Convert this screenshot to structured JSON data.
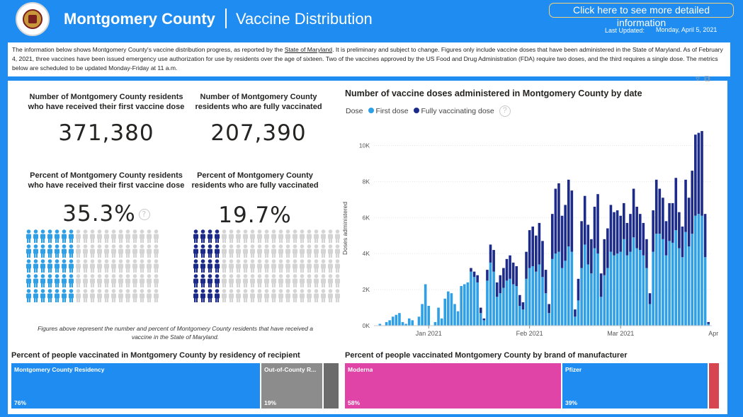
{
  "header": {
    "title": "Montgomery County",
    "subtitle": "Vaccine Distribution",
    "detail_button": "Click here to see more detailed information",
    "updated_label": "Last Updated:",
    "updated_value": "Monday, April 5, 2021"
  },
  "info": {
    "text_before_link": "The information below shows Montgomery County's vaccine distribution progress, as reported by the ",
    "link_text": "State of Maryland",
    "text_after_link": ". It is preliminary and subject to change. Figures only include vaccine doses that have been administered in the State of Maryland. As of  February 4, 2021, three vaccines have been issued emergency use authorization for use by residents over the age of sixteen. Two of the vaccines approved by the US Food and Drug Administration (FDA) require two doses, and the third requires a single dose. The metrics below are scheduled to be updated Monday-Friday at 11 a.m."
  },
  "kpis": {
    "first_dose_label": "Number of Montgomery County residents who have received their first vaccine dose",
    "first_dose_value": "371,380",
    "full_label": "Number of Montgomery County residents who are fully vaccinated",
    "full_value": "207,390",
    "first_pct_label": "Percent of Montgomery County residents who have received their first vaccine dose",
    "first_pct_value": "35.3%",
    "first_pct_fraction": 0.353,
    "full_pct_label": "Percent of Montgomery County residents who are fully vaccinated",
    "full_pct_value": "19.7%",
    "full_pct_fraction": 0.197,
    "footnote": "Figures above represent the number and percent of Montgomery County residents that have received a vaccine in the State of Maryland."
  },
  "colors": {
    "header_blue": "#1e8cf0",
    "first_dose": "#2f9fe6",
    "full_dose": "#1c2a8a",
    "person_empty": "#d4d4d4",
    "moderna": "#e044a7",
    "pfizer": "#1e8cf0",
    "janssen": "#d64550",
    "residency": "#1e8cf0",
    "out_of_county": "#8c8c8c",
    "other": "#6b6b6b"
  },
  "chart_data": {
    "type": "bar",
    "title": "Number of vaccine doses administered in Montgomery County by date",
    "legend_title": "Dose",
    "ylabel": "Doses administered",
    "ylim": [
      0,
      11000
    ],
    "yticks": [
      0,
      2000,
      4000,
      6000,
      8000,
      10000
    ],
    "ytick_labels": [
      "0K",
      "2K",
      "4K",
      "6K",
      "8K",
      "10K"
    ],
    "xticks": [
      "Jan 2021",
      "Feb 2021",
      "Mar 2021",
      "Apr 2021"
    ],
    "xtick_dates": [
      "2021-01-01",
      "2021-02-01",
      "2021-03-01",
      "2021-04-01"
    ],
    "start_date": "2020-12-16",
    "series": [
      {
        "name": "First dose",
        "values": [
          0,
          100,
          0,
          200,
          300,
          500,
          600,
          700,
          200,
          100,
          400,
          300,
          0,
          500,
          1200,
          2300,
          1100,
          0,
          200,
          1000,
          400,
          1500,
          1900,
          1800,
          1200,
          800,
          2200,
          2300,
          2400,
          3000,
          2700,
          2400,
          700,
          300,
          2500,
          3500,
          3000,
          1600,
          1800,
          2100,
          2500,
          2600,
          2300,
          2200,
          1100,
          900,
          2600,
          3200,
          3300,
          3000,
          3400,
          2700,
          1800,
          700,
          3700,
          4000,
          4100,
          3200,
          3600,
          4400,
          4100,
          500,
          1400,
          3200,
          4500,
          3400,
          2900,
          4300,
          4000,
          1600,
          2800,
          3200,
          4100,
          3900,
          4000,
          4100,
          4800,
          3900,
          4100,
          4900,
          4300,
          4200,
          3900,
          3200,
          1200,
          4100,
          5100,
          5100,
          4800,
          3900,
          4700,
          4600,
          5300,
          4300,
          3800,
          5200,
          4400,
          5100,
          6100,
          6200,
          6100,
          3800,
          100
        ]
      },
      {
        "name": "Fully vaccinating dose",
        "values": [
          0,
          0,
          0,
          0,
          0,
          0,
          0,
          0,
          0,
          0,
          0,
          0,
          0,
          0,
          0,
          0,
          0,
          0,
          0,
          0,
          0,
          0,
          0,
          0,
          0,
          0,
          0,
          0,
          0,
          200,
          300,
          400,
          300,
          100,
          600,
          1000,
          1200,
          800,
          1000,
          1100,
          1200,
          1300,
          1200,
          1100,
          600,
          400,
          1500,
          2100,
          2200,
          2000,
          2300,
          2000,
          1300,
          500,
          2500,
          3600,
          3800,
          2900,
          3100,
          3700,
          3400,
          400,
          1200,
          2600,
          2700,
          2200,
          1900,
          2300,
          3300,
          1300,
          2000,
          2200,
          2600,
          2400,
          2400,
          2000,
          2000,
          1800,
          2100,
          2700,
          2300,
          2000,
          1800,
          1600,
          600,
          2300,
          3000,
          2500,
          2300,
          1900,
          2100,
          2200,
          2900,
          2000,
          1700,
          2900,
          2700,
          3500,
          4500,
          4500,
          4700,
          2400,
          100
        ]
      }
    ]
  },
  "residency": {
    "title": "Percent of people vaccinated in Montgomery County by residency of recipient",
    "tiles": [
      {
        "label": "Montgomery County Residency",
        "pct": "76%",
        "value": 0.76
      },
      {
        "label": "Out-of-County R...",
        "pct": "19%",
        "value": 0.19
      },
      {
        "label": "",
        "pct": "",
        "value": 0.05
      }
    ]
  },
  "manufacturer": {
    "title": "Percent of people vaccinated Montgomery County by brand of manufacturer",
    "tiles": [
      {
        "label": "Moderna",
        "pct": "58%",
        "value": 0.58
      },
      {
        "label": "Pfizer",
        "pct": "39%",
        "value": 0.39
      },
      {
        "label": "",
        "pct": "",
        "value": 0.03
      }
    ]
  },
  "icons": {
    "filter": "filter-icon",
    "focus": "focus-mode-icon",
    "help": "?"
  }
}
